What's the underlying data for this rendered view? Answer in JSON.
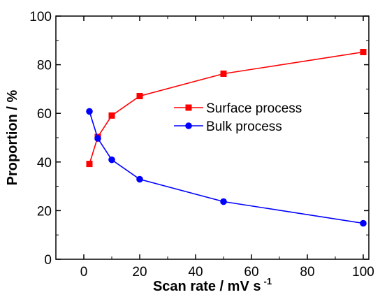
{
  "chart_data": {
    "type": "line",
    "title": "",
    "xlabel": "Scan rate / mV s",
    "xlabel_sup": "-1",
    "ylabel": "Proportion / %",
    "xlim": [
      -10,
      102
    ],
    "ylim": [
      0,
      100
    ],
    "xticks": [
      0,
      20,
      40,
      60,
      80,
      100
    ],
    "yticks": [
      0,
      20,
      40,
      60,
      80,
      100
    ],
    "grid": false,
    "legend_position": "center-right",
    "series": [
      {
        "name": "Surface process",
        "color": "#ff0000",
        "marker": "square",
        "x": [
          2,
          5,
          10,
          20,
          50,
          100
        ],
        "y": [
          39.2,
          50.3,
          59.1,
          67.1,
          76.3,
          85.2
        ]
      },
      {
        "name": "Bulk process",
        "color": "#0000ff",
        "marker": "circle",
        "x": [
          2,
          5,
          10,
          20,
          50,
          100
        ],
        "y": [
          60.8,
          49.7,
          40.9,
          32.9,
          23.7,
          14.8
        ]
      }
    ]
  }
}
